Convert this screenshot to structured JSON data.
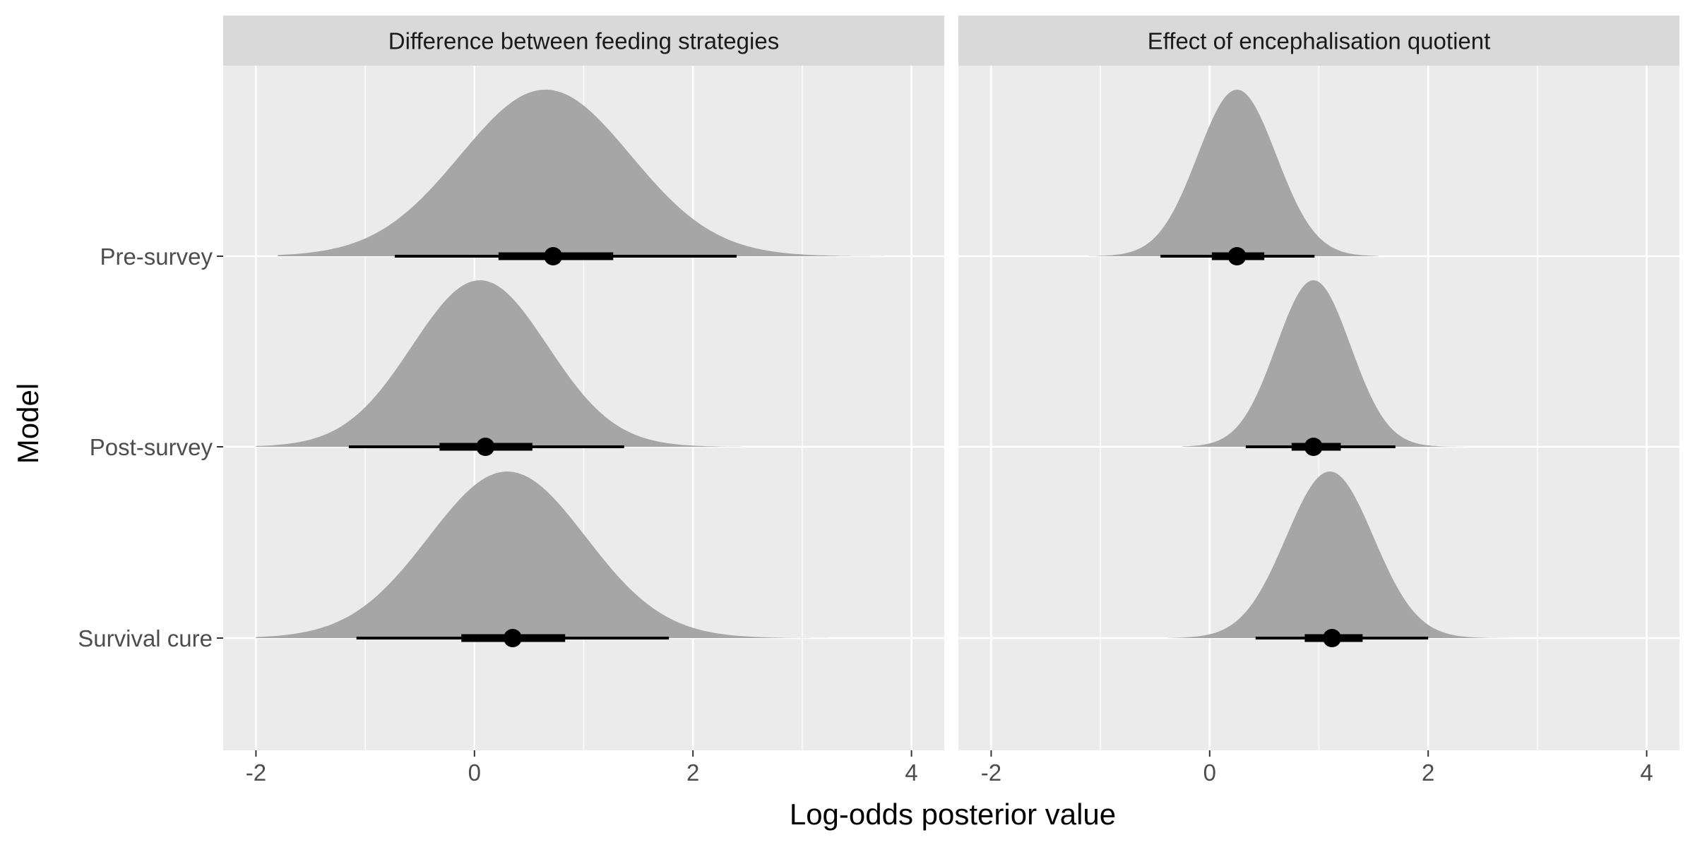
{
  "chart_data": {
    "type": "density-interval",
    "xlabel": "Log-odds posterior value",
    "ylabel": "Model",
    "xlim": [
      -2.3,
      4.3
    ],
    "x_ticks": [
      -2,
      0,
      2,
      4
    ],
    "x_tick_labels": [
      "-2",
      "0",
      "2",
      "4"
    ],
    "categories": [
      "Pre-survey",
      "Post-survey",
      "Survival cure"
    ],
    "grid": true,
    "panels": [
      {
        "title": "Difference between feeding strategies",
        "series": [
          {
            "category": "Pre-survey",
            "mean": 0.65,
            "sd": 0.78,
            "point": 0.72,
            "inner": [
              0.22,
              1.27
            ],
            "outer": [
              -0.73,
              2.4
            ],
            "range": [
              -1.8,
              3.75
            ]
          },
          {
            "category": "Post-survey",
            "mean": 0.05,
            "sd": 0.62,
            "point": 0.1,
            "inner": [
              -0.32,
              0.53
            ],
            "outer": [
              -1.15,
              1.37
            ],
            "range": [
              -2.0,
              2.45
            ]
          },
          {
            "category": "Survival cure",
            "mean": 0.3,
            "sd": 0.72,
            "point": 0.35,
            "inner": [
              -0.12,
              0.83
            ],
            "outer": [
              -1.08,
              1.78
            ],
            "range": [
              -2.0,
              3.25
            ]
          }
        ]
      },
      {
        "title": "Effect of encephalisation quotient",
        "series": [
          {
            "category": "Pre-survey",
            "mean": 0.25,
            "sd": 0.36,
            "point": 0.25,
            "inner": [
              0.02,
              0.5
            ],
            "outer": [
              -0.45,
              0.96
            ],
            "range": [
              -1.1,
              1.55
            ]
          },
          {
            "category": "Post-survey",
            "mean": 0.95,
            "sd": 0.34,
            "point": 0.95,
            "inner": [
              0.75,
              1.2
            ],
            "outer": [
              0.33,
              1.7
            ],
            "range": [
              -0.25,
              2.4
            ]
          },
          {
            "category": "Survival cure",
            "mean": 1.1,
            "sd": 0.4,
            "point": 1.12,
            "inner": [
              0.87,
              1.4
            ],
            "outer": [
              0.42,
              2.0
            ],
            "range": [
              -0.38,
              3.15
            ]
          }
        ]
      }
    ]
  }
}
